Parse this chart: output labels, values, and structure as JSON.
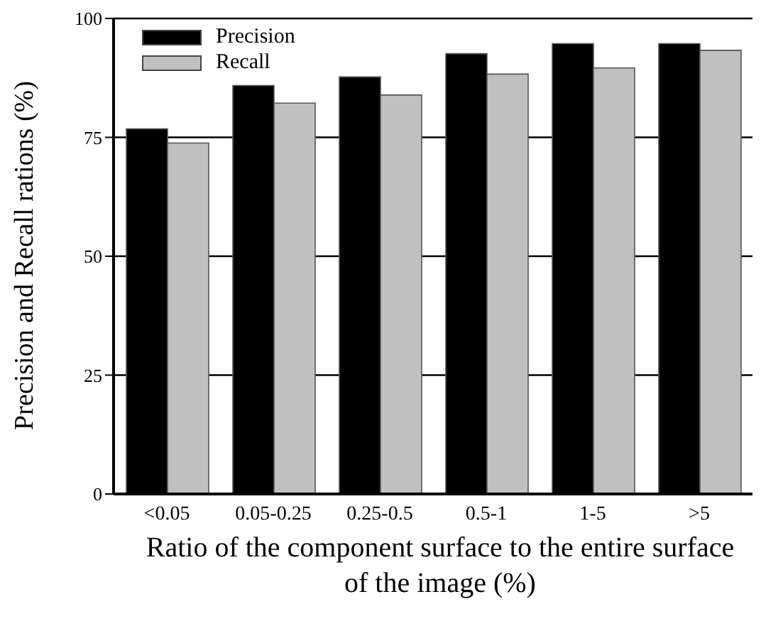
{
  "chart_data": {
    "type": "bar",
    "xlabel": "Ratio of the component surface to the entire surface of the image (%)",
    "ylabel": "Precision and Recall rations (%)",
    "categories": [
      "<0.05",
      "0.05-0.25",
      "0.25-0.5",
      "0.5-1",
      "1-5",
      ">5"
    ],
    "series": [
      {
        "name": "Precision",
        "color": "#000000",
        "values": [
          76.8,
          85.9,
          87.7,
          92.6,
          94.7,
          94.7
        ]
      },
      {
        "name": "Recall",
        "color": "#c0c0c0",
        "values": [
          73.8,
          82.2,
          83.9,
          88.3,
          89.6,
          93.3
        ]
      }
    ],
    "ylim": [
      0,
      100
    ],
    "yticks": [
      0,
      25,
      50,
      75,
      100
    ],
    "grid": "y",
    "legend": "top left"
  }
}
